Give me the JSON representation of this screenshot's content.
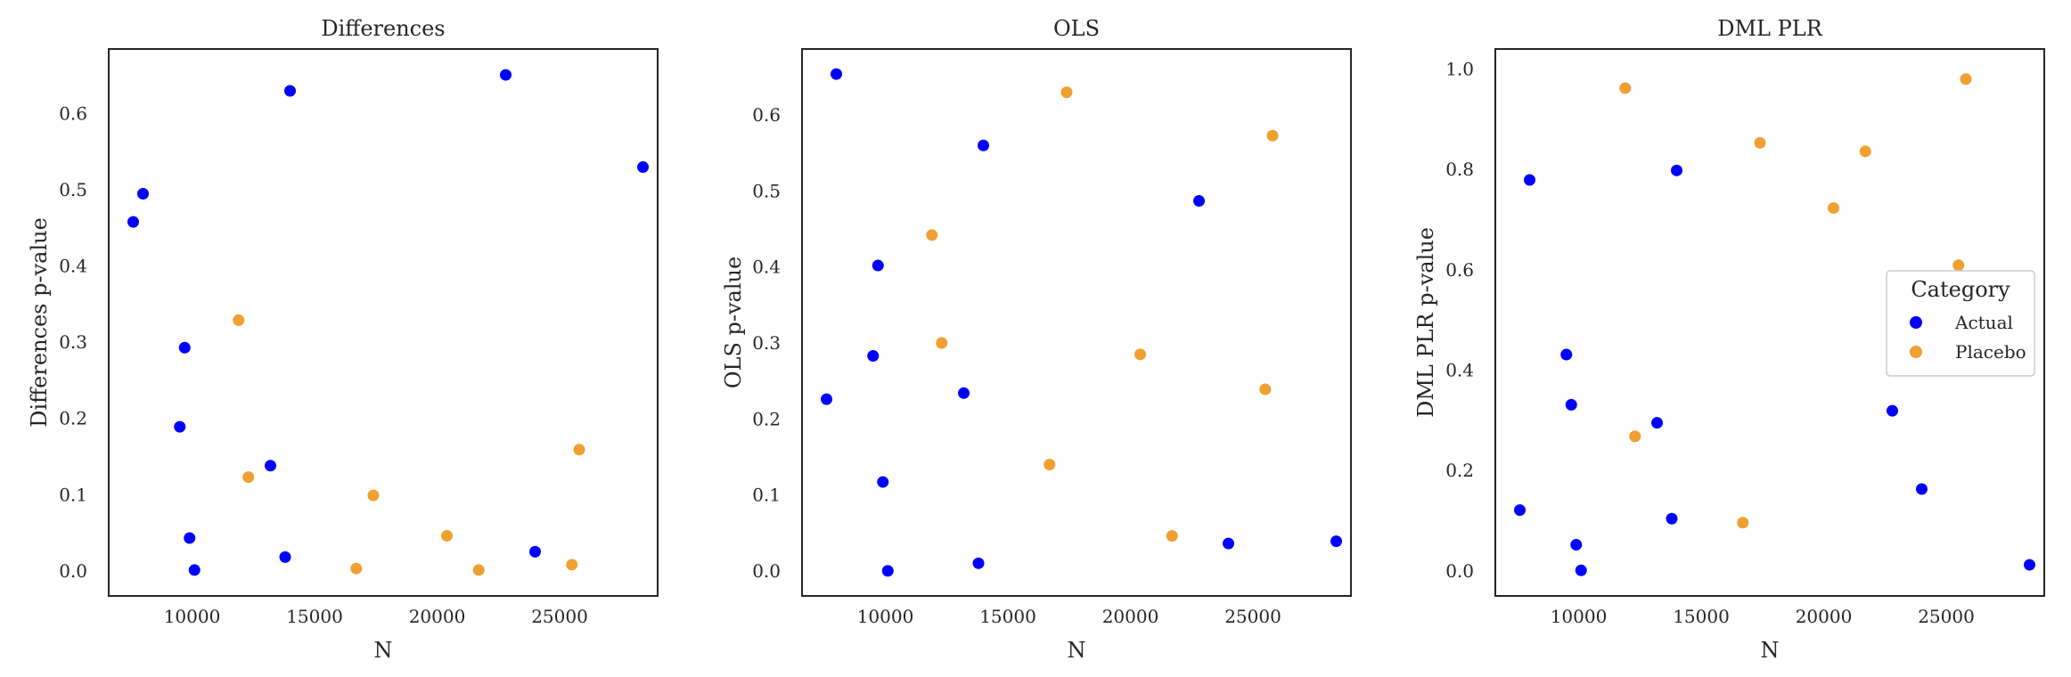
{
  "colors": {
    "Actual": "#0000ff",
    "Placebo": "#f0a030",
    "spine": "#262626",
    "legend_border": "#cccccc"
  },
  "chart_data": [
    {
      "type": "scatter",
      "title": "Differences",
      "xlabel": "N",
      "ylabel": "Differences p-value",
      "xlim": [
        6600,
        29000
      ],
      "ylim": [
        -0.033,
        0.685
      ],
      "xticks": [
        10000,
        15000,
        20000,
        25000
      ],
      "yticks": [
        0.0,
        0.1,
        0.2,
        0.3,
        0.4,
        0.5,
        0.6
      ],
      "xtick_labels": [
        "10000",
        "15000",
        "20000",
        "25000"
      ],
      "ytick_labels": [
        "0.0",
        "0.1",
        "0.2",
        "0.3",
        "0.4",
        "0.5",
        "0.6"
      ],
      "grid": false,
      "series": [
        {
          "name": "Actual",
          "points": [
            [
              7600,
              0.458
            ],
            [
              8000,
              0.495
            ],
            [
              9500,
              0.189
            ],
            [
              9700,
              0.293
            ],
            [
              9900,
              0.043
            ],
            [
              10100,
              0.001
            ],
            [
              13200,
              0.138
            ],
            [
              13800,
              0.018
            ],
            [
              14000,
              0.63
            ],
            [
              22800,
              0.651
            ],
            [
              24000,
              0.025
            ],
            [
              28400,
              0.53
            ]
          ]
        },
        {
          "name": "Placebo",
          "points": [
            [
              11900,
              0.329
            ],
            [
              12300,
              0.123
            ],
            [
              16700,
              0.003
            ],
            [
              17400,
              0.099
            ],
            [
              20400,
              0.046
            ],
            [
              21700,
              0.001
            ],
            [
              25500,
              0.008
            ],
            [
              25800,
              0.159
            ]
          ]
        }
      ]
    },
    {
      "type": "scatter",
      "title": "OLS",
      "xlabel": "N",
      "ylabel": "OLS p-value",
      "xlim": [
        6600,
        29000
      ],
      "ylim": [
        -0.033,
        0.687
      ],
      "xticks": [
        10000,
        15000,
        20000,
        25000
      ],
      "yticks": [
        0.0,
        0.1,
        0.2,
        0.3,
        0.4,
        0.5,
        0.6
      ],
      "xtick_labels": [
        "10000",
        "15000",
        "20000",
        "25000"
      ],
      "ytick_labels": [
        "0.0",
        "0.1",
        "0.2",
        "0.3",
        "0.4",
        "0.5",
        "0.6"
      ],
      "grid": false,
      "series": [
        {
          "name": "Actual",
          "points": [
            [
              7600,
              0.226
            ],
            [
              8000,
              0.654
            ],
            [
              9500,
              0.283
            ],
            [
              9700,
              0.402
            ],
            [
              9900,
              0.117
            ],
            [
              10100,
              0.0
            ],
            [
              13200,
              0.234
            ],
            [
              13800,
              0.01
            ],
            [
              14000,
              0.56
            ],
            [
              22800,
              0.487
            ],
            [
              24000,
              0.036
            ],
            [
              28400,
              0.039
            ]
          ]
        },
        {
          "name": "Placebo",
          "points": [
            [
              11900,
              0.442
            ],
            [
              12300,
              0.3
            ],
            [
              16700,
              0.14
            ],
            [
              17400,
              0.63
            ],
            [
              20400,
              0.285
            ],
            [
              21700,
              0.046
            ],
            [
              25500,
              0.239
            ],
            [
              25800,
              0.573
            ]
          ]
        }
      ]
    },
    {
      "type": "scatter",
      "title": "DML PLR",
      "xlabel": "N",
      "ylabel": "DML PLR p-value",
      "xlim": [
        6600,
        29000
      ],
      "ylim": [
        -0.05,
        1.04
      ],
      "xticks": [
        10000,
        15000,
        20000,
        25000
      ],
      "yticks": [
        0.0,
        0.2,
        0.4,
        0.6,
        0.8,
        1.0
      ],
      "xtick_labels": [
        "10000",
        "15000",
        "20000",
        "25000"
      ],
      "ytick_labels": [
        "0.0",
        "0.2",
        "0.4",
        "0.6",
        "0.8",
        "1.0"
      ],
      "grid": false,
      "legend": {
        "title": "Category",
        "placement": "center-right",
        "entries": [
          "Actual",
          "Placebo"
        ]
      },
      "series": [
        {
          "name": "Actual",
          "points": [
            [
              7600,
              0.121
            ],
            [
              8000,
              0.779
            ],
            [
              9500,
              0.431
            ],
            [
              9700,
              0.331
            ],
            [
              9900,
              0.052
            ],
            [
              10100,
              0.001
            ],
            [
              13200,
              0.295
            ],
            [
              13800,
              0.104
            ],
            [
              14000,
              0.798
            ],
            [
              22800,
              0.319
            ],
            [
              24000,
              0.163
            ],
            [
              28400,
              0.012
            ]
          ]
        },
        {
          "name": "Placebo",
          "points": [
            [
              11900,
              0.962
            ],
            [
              12300,
              0.268
            ],
            [
              16700,
              0.096
            ],
            [
              17400,
              0.853
            ],
            [
              20400,
              0.723
            ],
            [
              21700,
              0.836
            ],
            [
              25500,
              0.609
            ],
            [
              25800,
              0.98
            ]
          ]
        }
      ]
    }
  ]
}
